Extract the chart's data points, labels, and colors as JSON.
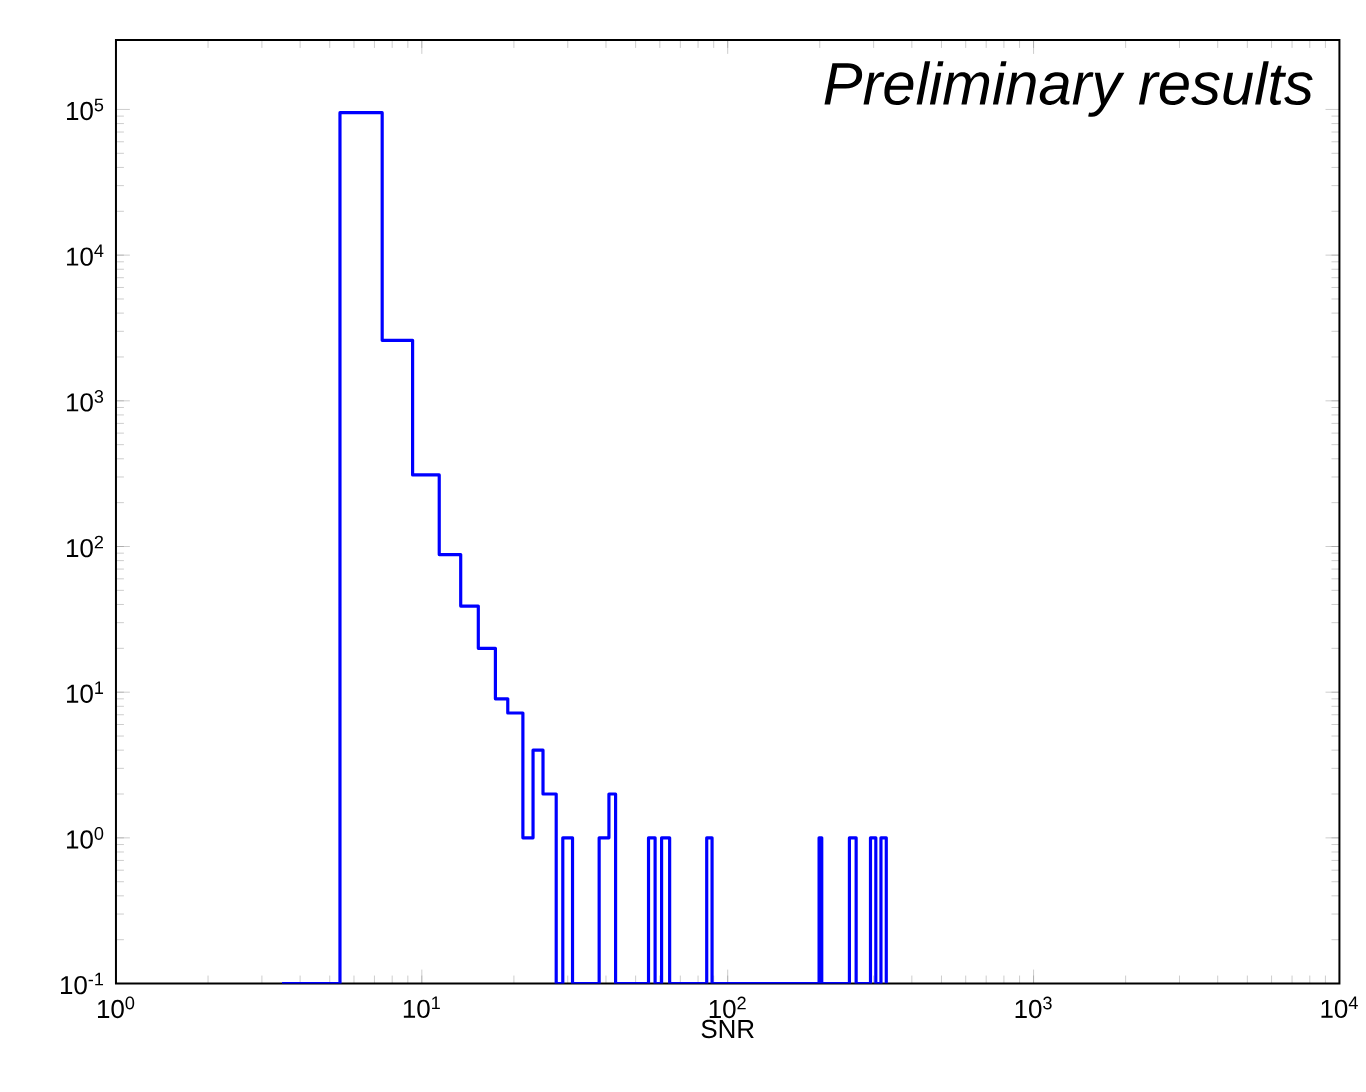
{
  "chart_data": {
    "type": "histogram",
    "xlabel": "SNR",
    "annotations": [
      "*Preliminary results*"
    ],
    "bins": [
      3.49,
      5.4,
      7.42,
      9.33,
      11.4,
      13.4,
      15.3,
      17.4,
      19.1,
      21.4,
      23.1,
      24.9,
      27.5,
      28.9,
      31.1,
      38.0,
      40.9,
      43.0,
      55.1,
      57.9,
      60.8,
      64.6,
      85.4,
      88.9,
      199,
      203,
      250,
      263,
      293,
      305,
      317,
      330
    ],
    "values": [
      0.1,
      95000,
      2600,
      310,
      88,
      39,
      20,
      9,
      7.2,
      1,
      4,
      2,
      0.1,
      1,
      0.1,
      1,
      2,
      0.1,
      1,
      0.1,
      1,
      0.1,
      1,
      0.1,
      1,
      0.1,
      1,
      0.1,
      1,
      0.1,
      1
    ],
    "color": "#0000ff",
    "log": "xy",
    "xlim": [
      1,
      10000
    ],
    "ylim": [
      0.1,
      300000
    ],
    "xticks": [
      {
        "value": 1,
        "label": "10$^{0}$"
      },
      {
        "value": 10,
        "label": "10$^{1}$"
      },
      {
        "value": 100,
        "label": "10$^{2}$"
      },
      {
        "value": 1000,
        "label": "10$^{3}$"
      },
      {
        "value": 10000,
        "label": "10$^{4}$"
      }
    ],
    "yticks": [
      {
        "value": 0.1,
        "label": "10$^{-1}$"
      },
      {
        "value": 1,
        "label": "10$^{0}$"
      },
      {
        "value": 10,
        "label": "10$^{1}$"
      },
      {
        "value": 100,
        "label": "10$^{2}$"
      },
      {
        "value": 1000,
        "label": "10$^{3}$"
      },
      {
        "value": 10000,
        "label": "10$^{4}$"
      },
      {
        "value": 100000,
        "label": "10$^{5}$"
      }
    ],
    "grid": false
  }
}
